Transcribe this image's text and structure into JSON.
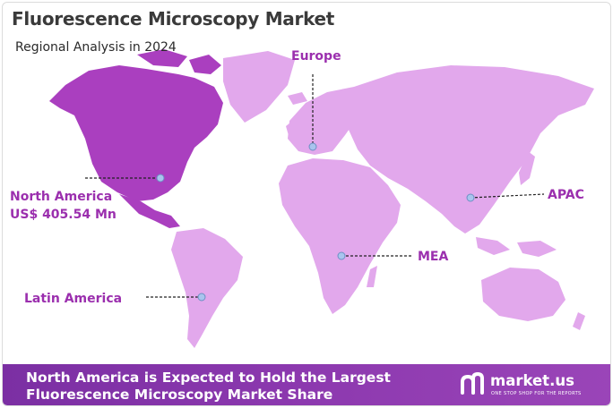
{
  "title": "Fluorescence Microscopy Market",
  "subtitle": "Regional Analysis in 2024",
  "colors": {
    "land": "#e2a8ec",
    "highlight": "#aa3fbf",
    "label": "#9b2fae",
    "marker": "#a9c4ee",
    "footer_bg": "#8a38ad"
  },
  "regions": {
    "europe": "Europe",
    "north_america": "North America",
    "north_america_value": "US$  405.54 Mn",
    "apac": "APAC",
    "mea": "MEA",
    "latin_america": "Latin America"
  },
  "highlighted_region": "North America",
  "footer": {
    "line1": "North America is Expected to Hold the Largest",
    "line2": "Fluorescence Microscopy Market Share"
  },
  "brand": {
    "name": "market.us",
    "tagline": "ONE STOP SHOP FOR THE REPORTS",
    "logo_icon": "market-us-logo-icon"
  }
}
